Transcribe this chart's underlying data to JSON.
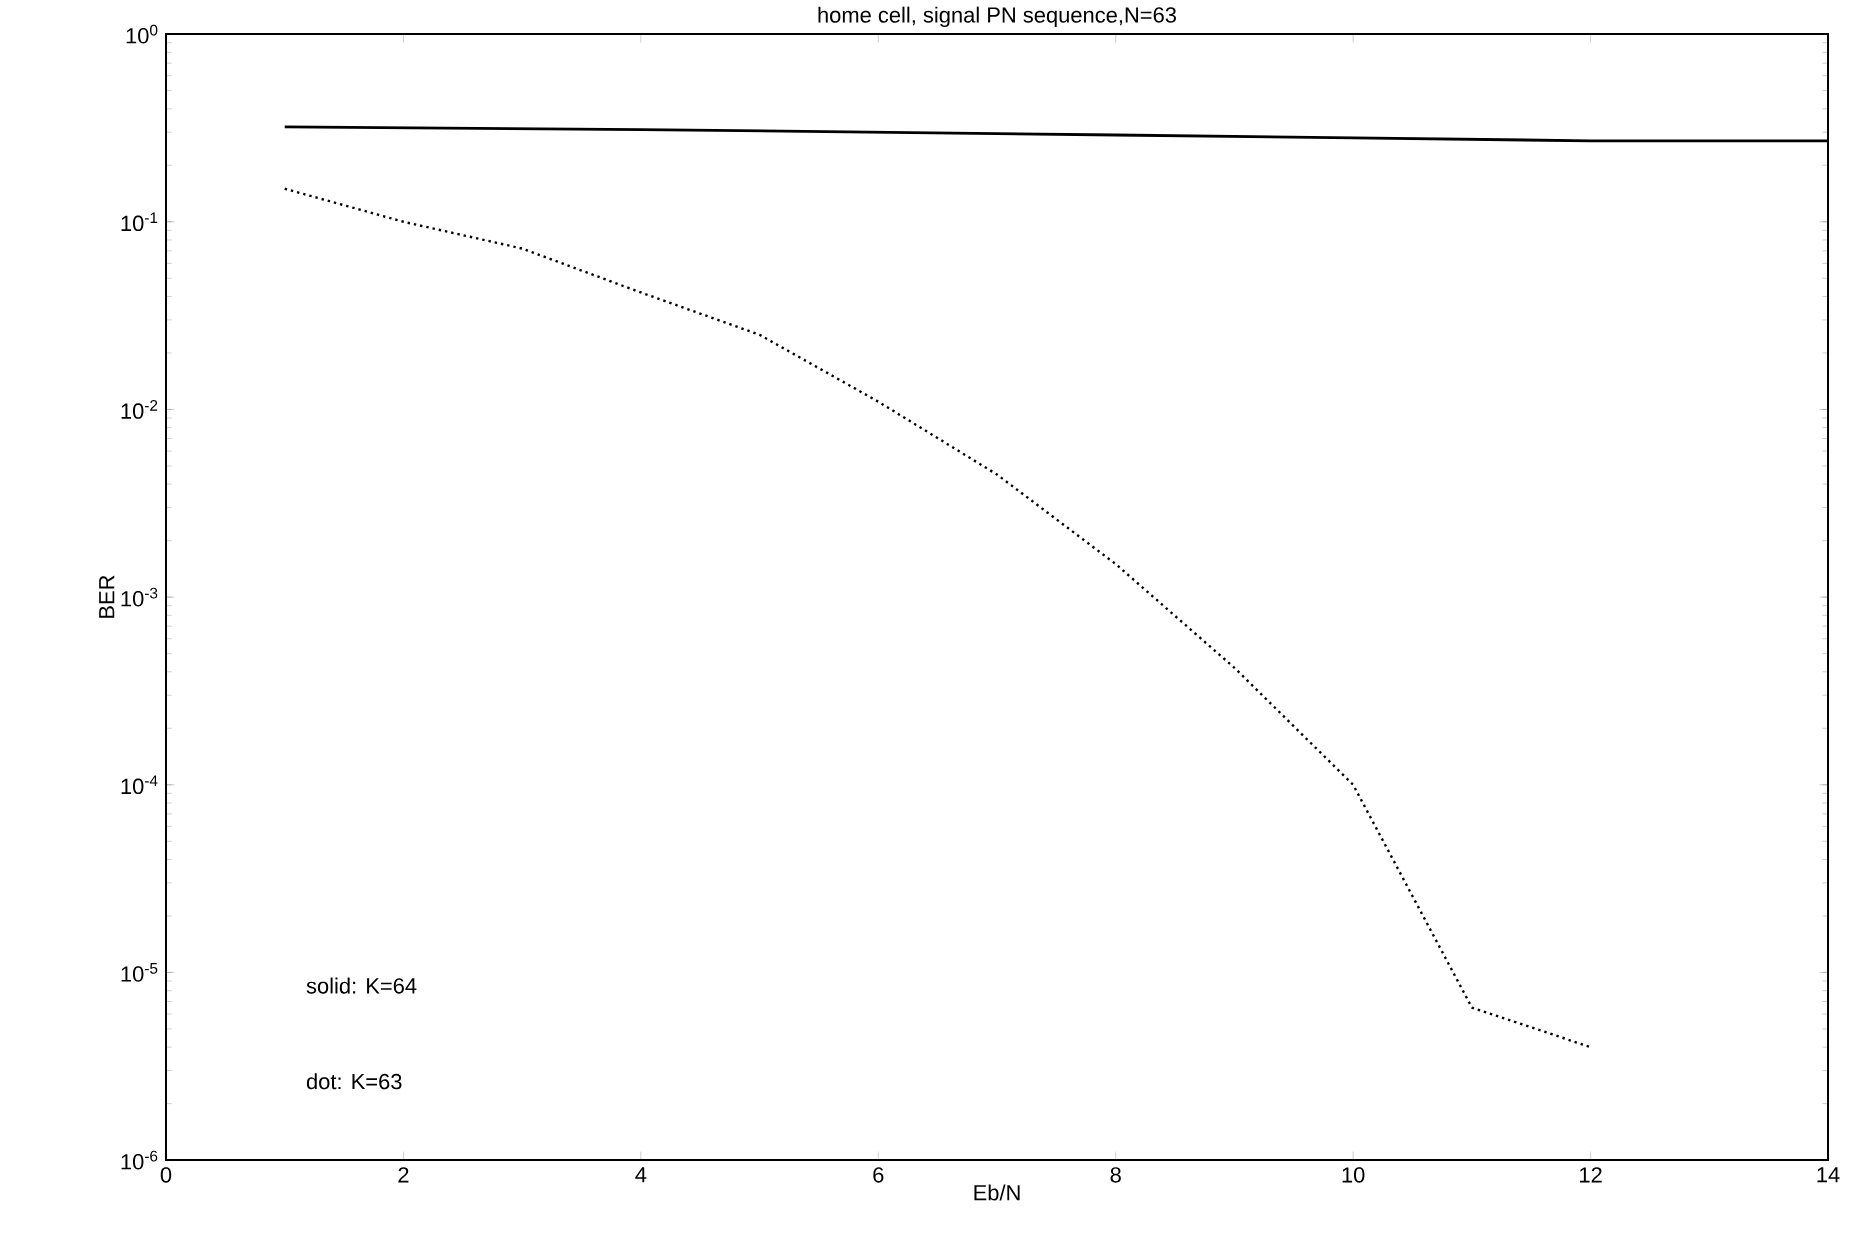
{
  "chart_data": {
    "type": "line",
    "title": "home cell, signal PN sequence,N=63",
    "xlabel": "Eb/N",
    "ylabel": "BER",
    "log": "y",
    "grid": false,
    "marker": "none",
    "xlim": [
      0,
      14
    ],
    "xticks": [
      0,
      2,
      4,
      6,
      8,
      10,
      12,
      14
    ],
    "ylim": [
      1e-06,
      1
    ],
    "yticks": [
      {
        "value": 1e-06,
        "label": "10$^{-6}$"
      },
      {
        "value": 1e-05,
        "label": "10$^{-5}$"
      },
      {
        "value": 0.0001,
        "label": "10$^{-4}$"
      },
      {
        "value": 0.001,
        "label": "10$^{-3}$"
      },
      {
        "value": 0.01,
        "label": "10$^{-2}$"
      },
      {
        "value": 0.1,
        "label": "10$^{-1}$"
      },
      {
        "value": 1,
        "label": "10$^{0}$"
      }
    ],
    "annotations": [
      "solid: K=64",
      "dot: K=63"
    ],
    "series": [
      {
        "color": "#000000",
        "line_style": "solid",
        "x": [
          1,
          4,
          8,
          10,
          12,
          14
        ],
        "values": [
          0.32,
          0.31,
          0.29,
          0.28,
          0.27,
          0.27
        ]
      },
      {
        "color": "#000000",
        "line_style": "dotted",
        "x": [
          1,
          2,
          3,
          4,
          5,
          6,
          7,
          8,
          9,
          10,
          11,
          12
        ],
        "values": [
          0.15,
          0.1,
          0.072,
          0.042,
          0.025,
          0.011,
          0.0045,
          0.0015,
          0.00042,
          0.0001,
          6.5e-06,
          4e-06
        ]
      }
    ]
  }
}
